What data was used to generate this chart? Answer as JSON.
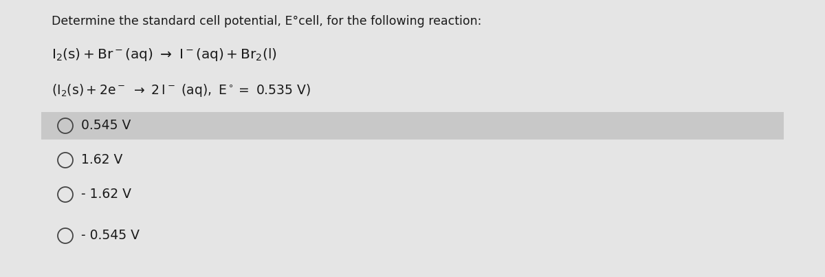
{
  "bg_color": "#e5e5e5",
  "highlight_bg": "#c8c8c8",
  "title": "Determine the standard cell potential, E°cell, for the following reaction:",
  "options": [
    "0.545 V",
    "1.62 V",
    "- 1.62 V",
    "- 0.545 V"
  ],
  "highlighted_option_index": 0,
  "title_fontsize": 12.5,
  "option_fontsize": 13.5,
  "reaction_fontsize": 14.5,
  "hint_fontsize": 13.5,
  "text_color": "#1a1a1a",
  "circle_color": "#444444",
  "circle_lw": 1.3
}
